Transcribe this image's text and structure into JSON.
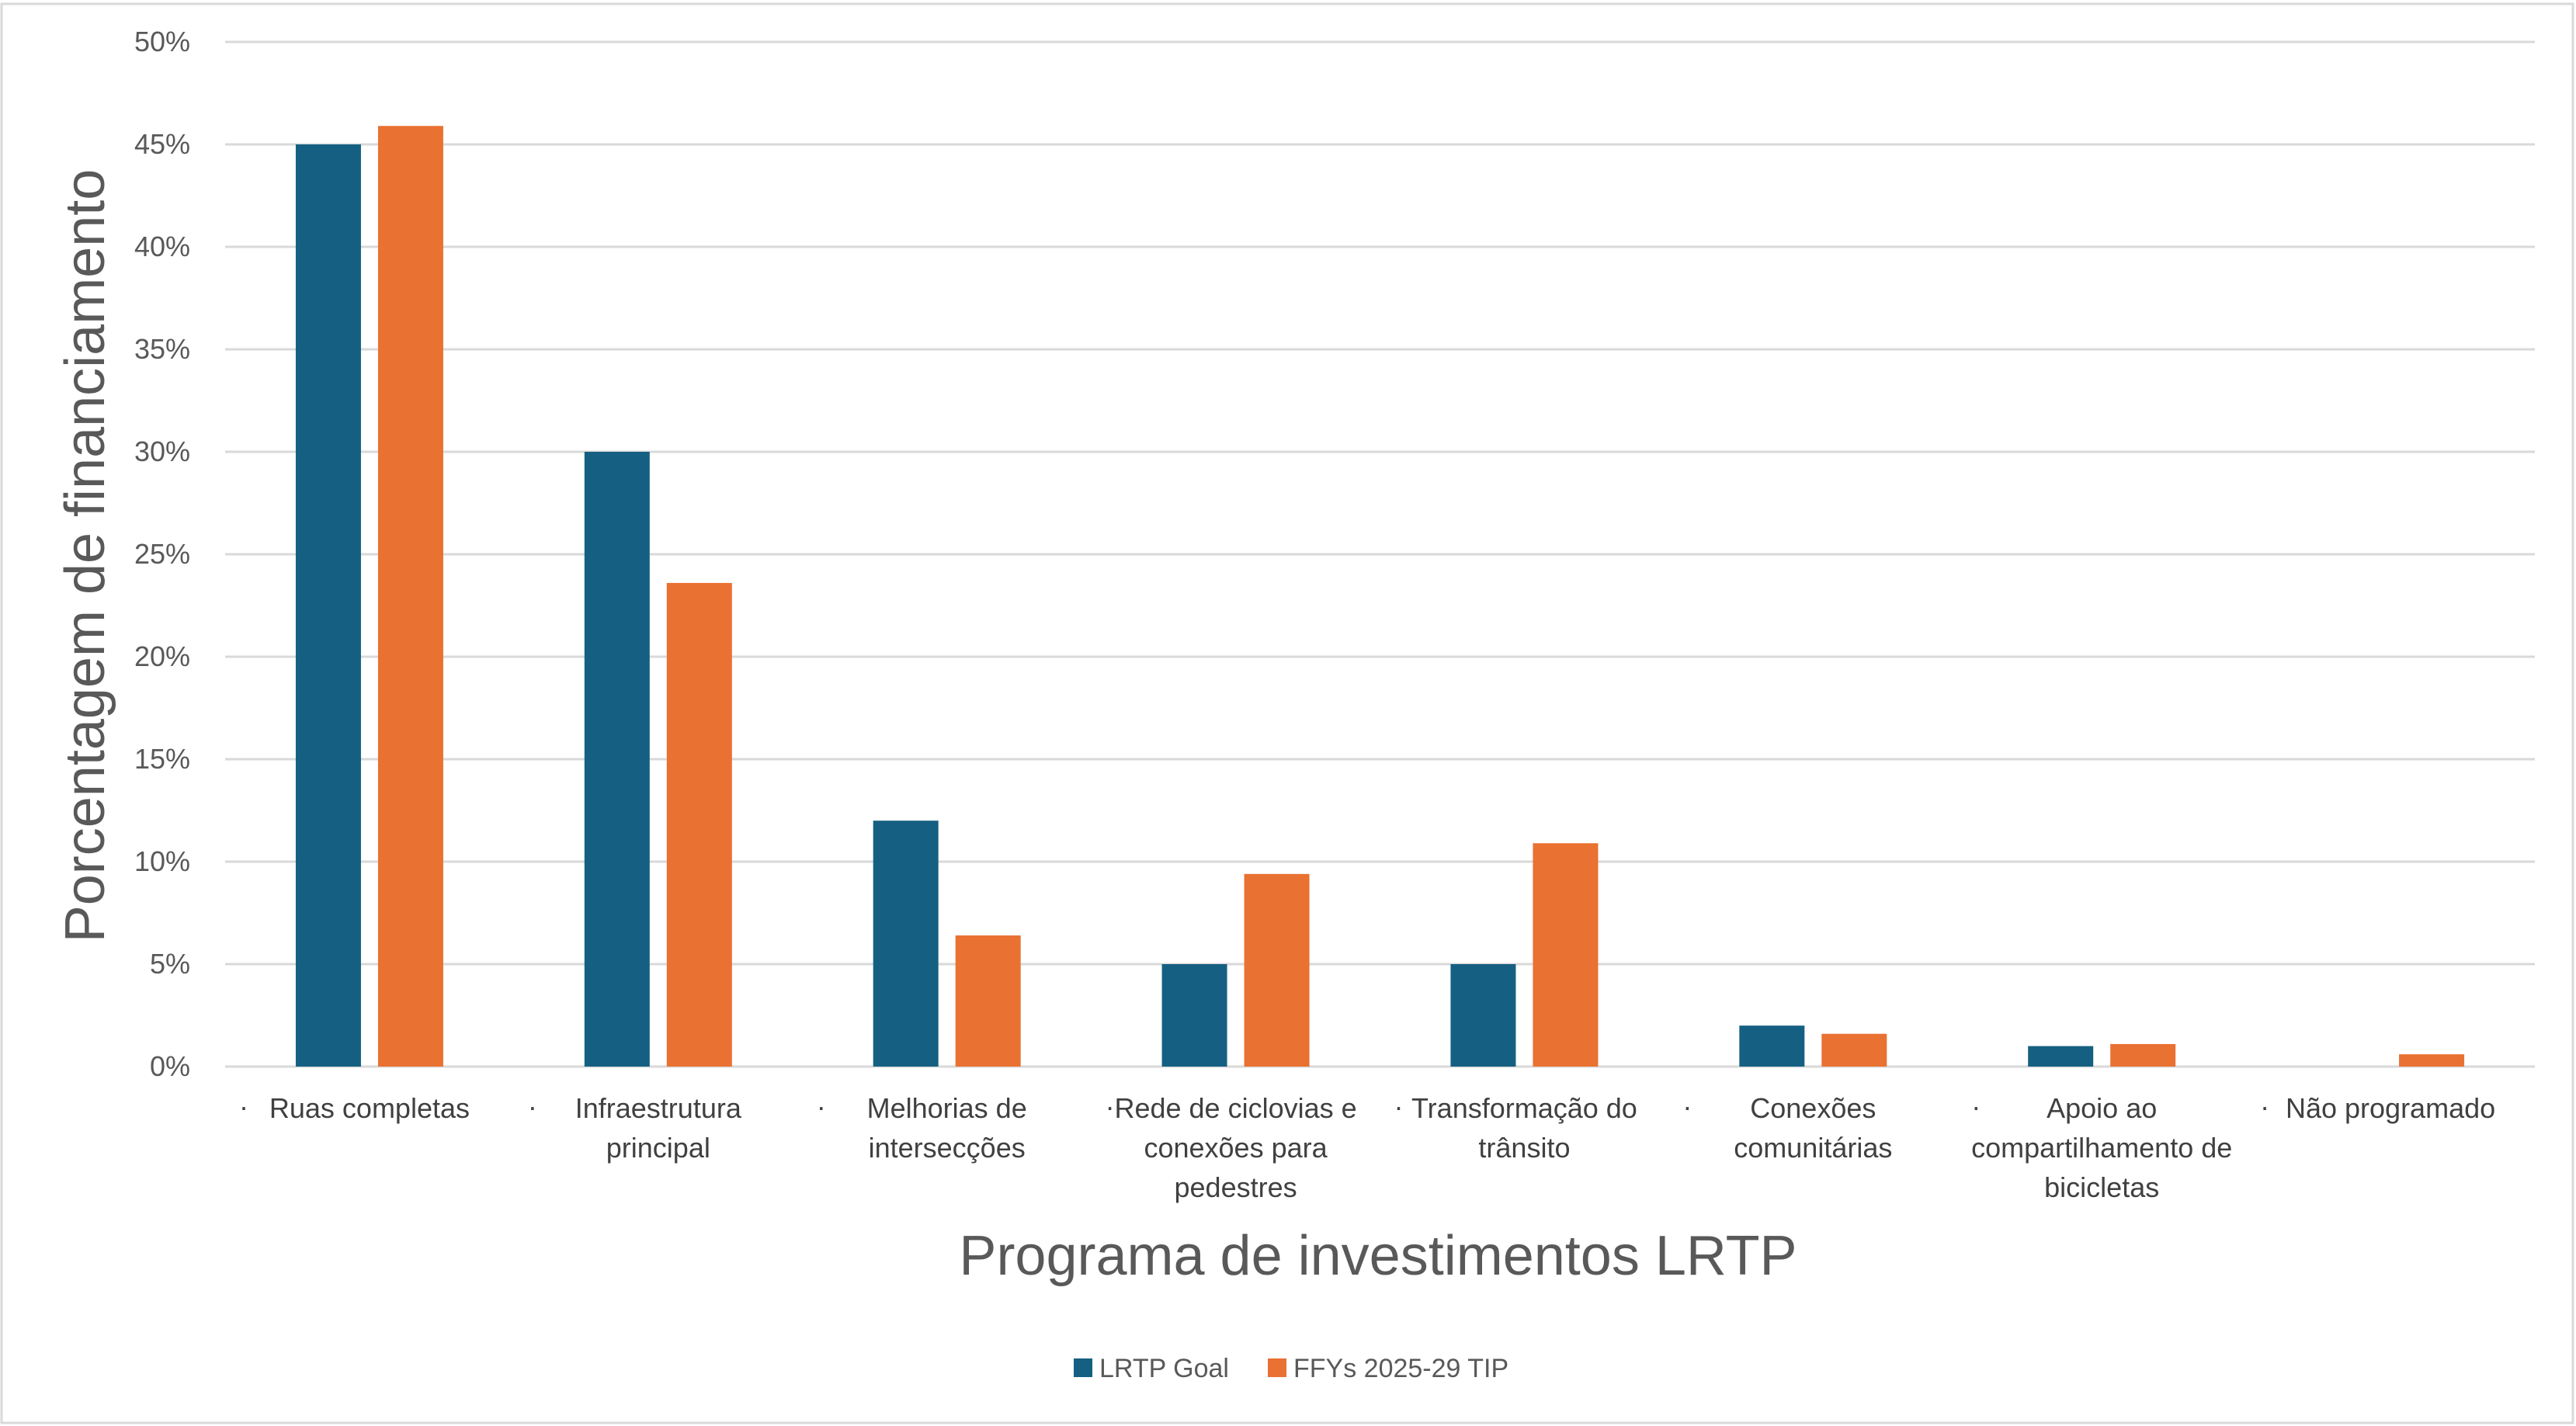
{
  "chart_data": {
    "type": "bar",
    "title": "",
    "xlabel": "Programa de investimentos LRTP",
    "ylabel": "Porcentagem de financiamento",
    "ylim": [
      0,
      50
    ],
    "yticks": [
      "0%",
      "5%",
      "10%",
      "15%",
      "20%",
      "25%",
      "30%",
      "35%",
      "40%",
      "45%",
      "50%"
    ],
    "grid": true,
    "legend_position": "bottom",
    "categories": [
      [
        "Ruas completas"
      ],
      [
        "Infraestrutura",
        "principal"
      ],
      [
        "Melhorias de",
        "intersecções"
      ],
      [
        "Rede de ciclovias e",
        "conexões para",
        "pedestres"
      ],
      [
        "Transformação do",
        "trânsito"
      ],
      [
        "Conexões",
        "comunitárias"
      ],
      [
        "Apoio ao",
        "compartilhamento de",
        "bicicletas"
      ],
      [
        "Não programado"
      ]
    ],
    "category_bullet": "·",
    "series": [
      {
        "name": "LRTP Goal",
        "color": "#156082",
        "values": [
          45,
          30,
          12,
          5,
          5,
          2,
          1,
          0
        ]
      },
      {
        "name": "FFYs 2025-29 TIP",
        "color": "#E97132",
        "values": [
          45.9,
          23.6,
          6.4,
          9.4,
          10.9,
          1.6,
          1.1,
          0.6
        ]
      }
    ]
  }
}
